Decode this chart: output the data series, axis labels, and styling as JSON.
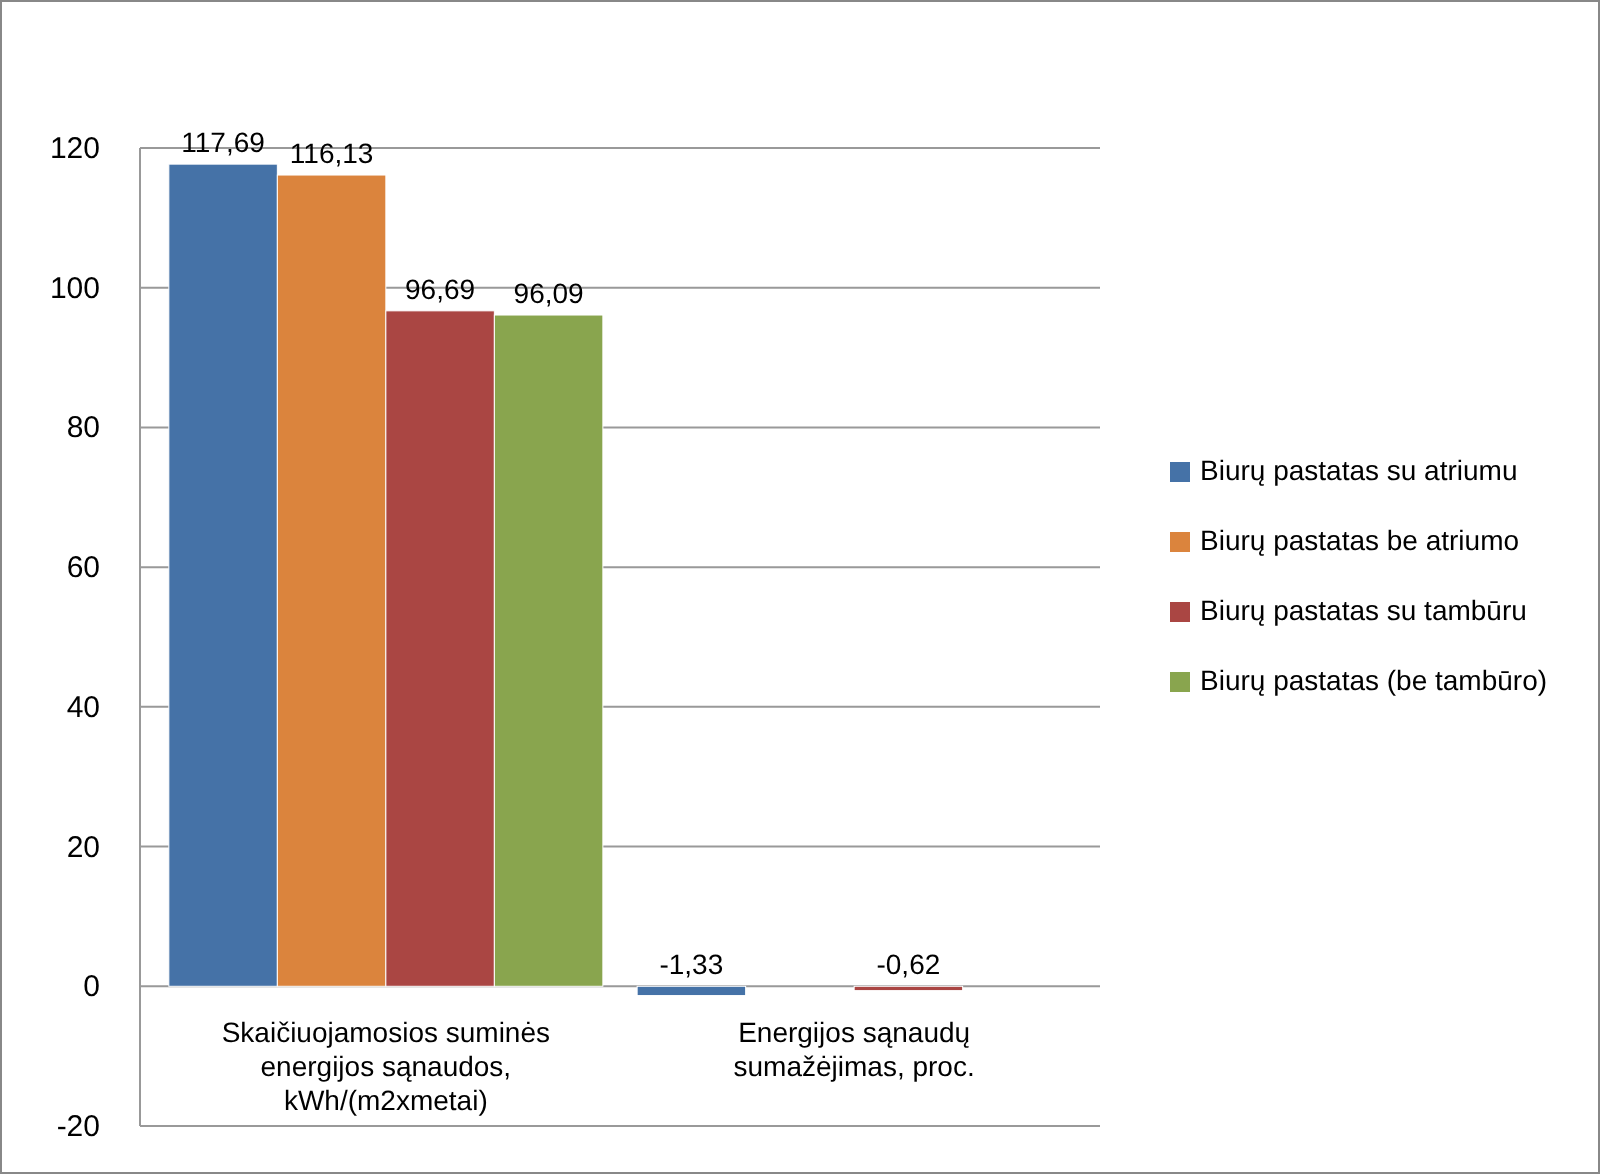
{
  "chart_data": {
    "type": "bar",
    "categories": [
      "Skaičiuojamosios suminės energijos sąnaudos, kWh/(m2xmetai)",
      "Energijos sąnaudų sumažėjimas, proc."
    ],
    "series": [
      {
        "name": "Biurų pastatas su atriumu",
        "color": "#4572a7",
        "values": [
          117.69,
          -1.33
        ],
        "value_labels": [
          "117,69",
          "-1,33"
        ]
      },
      {
        "name": "Biurų pastatas be atriumo",
        "color": "#db843d",
        "values": [
          116.13,
          null
        ],
        "value_labels": [
          "116,13",
          null
        ]
      },
      {
        "name": "Biurų pastatas su tambūru",
        "color": "#aa4643",
        "values": [
          96.69,
          -0.62
        ],
        "value_labels": [
          "96,69",
          "-0,62"
        ]
      },
      {
        "name": "Biurų pastatas (be tambūro)",
        "color": "#89a54e",
        "values": [
          96.09,
          null
        ],
        "value_labels": [
          "96,09",
          null
        ]
      }
    ],
    "ylim": [
      -20,
      120
    ],
    "yticks": [
      -20,
      0,
      20,
      40,
      60,
      80,
      100,
      120
    ],
    "grid": "y",
    "legend": "right"
  }
}
